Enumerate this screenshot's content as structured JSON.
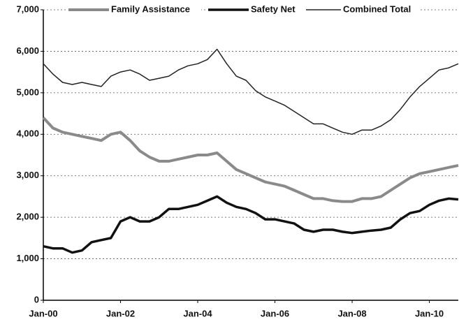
{
  "chart_data": {
    "type": "line",
    "x": [
      "Jan-00",
      "Apr-00",
      "Jul-00",
      "Oct-00",
      "Jan-01",
      "Apr-01",
      "Jul-01",
      "Oct-01",
      "Jan-02",
      "Apr-02",
      "Jul-02",
      "Oct-02",
      "Jan-03",
      "Apr-03",
      "Jul-03",
      "Oct-03",
      "Jan-04",
      "Apr-04",
      "Jul-04",
      "Oct-04",
      "Jan-05",
      "Apr-05",
      "Jul-05",
      "Oct-05",
      "Jan-06",
      "Apr-06",
      "Jul-06",
      "Oct-06",
      "Jan-07",
      "Apr-07",
      "Jul-07",
      "Oct-07",
      "Jan-08",
      "Apr-08",
      "Jul-08",
      "Oct-08",
      "Jan-09",
      "Apr-09",
      "Jul-09",
      "Oct-09",
      "Jan-10",
      "Apr-10",
      "Jul-10",
      "Oct-10"
    ],
    "series": [
      {
        "name": "Family Assistance",
        "color": "#8a8a8a",
        "values": [
          4400,
          4150,
          4050,
          4000,
          3950,
          3900,
          3850,
          4000,
          4050,
          3850,
          3600,
          3450,
          3350,
          3350,
          3400,
          3450,
          3500,
          3500,
          3550,
          3350,
          3150,
          3050,
          2950,
          2850,
          2800,
          2750,
          2650,
          2550,
          2450,
          2450,
          2400,
          2380,
          2380,
          2450,
          2450,
          2500,
          2650,
          2800,
          2950,
          3050,
          3100,
          3150,
          3200,
          3250
        ]
      },
      {
        "name": "Safety Net",
        "color": "#111111",
        "values": [
          1300,
          1250,
          1250,
          1150,
          1200,
          1400,
          1450,
          1500,
          1900,
          2000,
          1900,
          1900,
          2000,
          2200,
          2200,
          2250,
          2300,
          2400,
          2500,
          2350,
          2250,
          2200,
          2100,
          1950,
          1950,
          1900,
          1850,
          1700,
          1650,
          1700,
          1700,
          1650,
          1620,
          1650,
          1680,
          1700,
          1750,
          1950,
          2100,
          2150,
          2300,
          2400,
          2450,
          2430
        ]
      },
      {
        "name": "Combined Total",
        "color": "#222222",
        "values": [
          5700,
          5450,
          5250,
          5200,
          5250,
          5200,
          5150,
          5400,
          5500,
          5550,
          5450,
          5300,
          5350,
          5400,
          5550,
          5650,
          5700,
          5800,
          6050,
          5700,
          5400,
          5300,
          5050,
          4900,
          4800,
          4700,
          4550,
          4400,
          4250,
          4250,
          4150,
          4050,
          4000,
          4100,
          4100,
          4200,
          4350,
          4600,
          4900,
          5150,
          5350,
          5550,
          5600,
          5700
        ]
      }
    ],
    "xlim": [
      "Jan-00",
      "Oct-10"
    ],
    "xticks": [
      "Jan-00",
      "Jan-02",
      "Jan-04",
      "Jan-06",
      "Jan-08",
      "Jan-10"
    ],
    "ylim": [
      0,
      7000
    ],
    "yticks": [
      0,
      {
        "value": 1000,
        "label": "1,000"
      },
      {
        "value": 2000,
        "label": "2,000"
      },
      {
        "value": 3000,
        "label": "3,000"
      },
      {
        "value": 4000,
        "label": "4,000"
      },
      {
        "value": 5000,
        "label": "5,000"
      },
      {
        "value": 6000,
        "label": "6,000"
      },
      {
        "value": 7000,
        "label": "7,000"
      }
    ],
    "grid": true
  }
}
